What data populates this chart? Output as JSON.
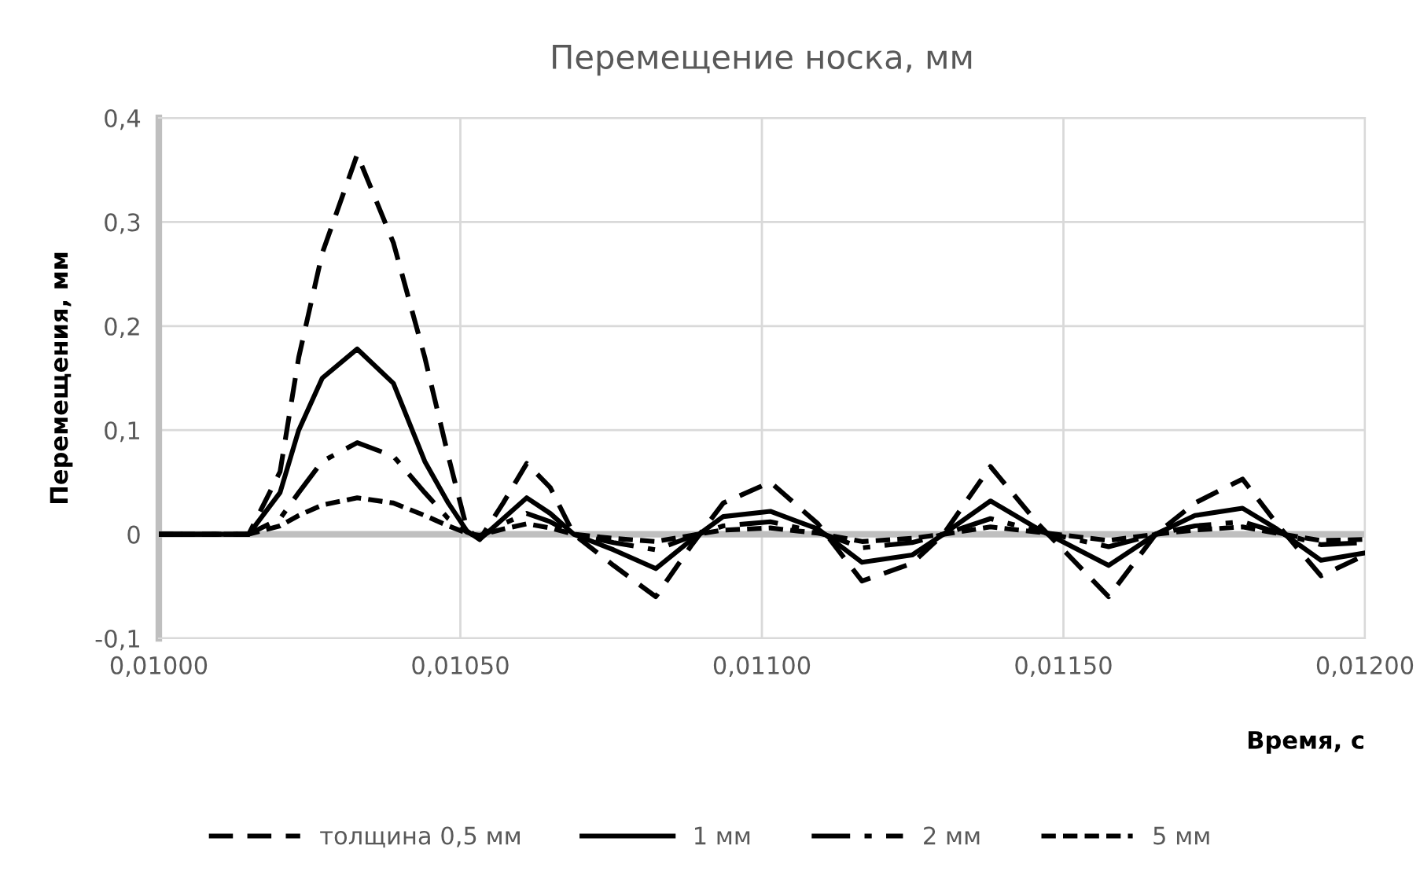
{
  "chart_data": {
    "type": "line",
    "title": "Перемещение носка, мм",
    "xlabel": "Время, с",
    "ylabel": "Перемещения, мм",
    "x": [
      0.01,
      0.010149,
      0.010201,
      0.010232,
      0.010271,
      0.010329,
      0.010389,
      0.010441,
      0.01048,
      0.010511,
      0.010532,
      0.010571,
      0.01061,
      0.010649,
      0.010688,
      0.010754,
      0.010824,
      0.010884,
      0.010936,
      0.011014,
      0.011093,
      0.011166,
      0.011249,
      0.011301,
      0.011379,
      0.011458,
      0.011575,
      0.011653,
      0.011718,
      0.011797,
      0.011854,
      0.011927,
      0.012
    ],
    "series": [
      {
        "name": "толщина 0,5 мм",
        "color": "#000000",
        "line_style": "dashed",
        "values": [
          0,
          0,
          0.06,
          0.17,
          0.27,
          0.365,
          0.28,
          0.17,
          0.075,
          0.005,
          -0.005,
          0.03,
          0.068,
          0.045,
          0,
          -0.03,
          -0.06,
          -0.01,
          0.03,
          0.05,
          0.01,
          -0.045,
          -0.028,
          0,
          0.065,
          0.01,
          -0.06,
          0,
          0.03,
          0.053,
          0.01,
          -0.04,
          -0.02
        ]
      },
      {
        "name": "1 мм",
        "color": "#000000",
        "line_style": "solid",
        "values": [
          0,
          0,
          0.04,
          0.1,
          0.15,
          0.178,
          0.145,
          0.07,
          0.03,
          0.003,
          -0.005,
          0.015,
          0.035,
          0.02,
          0,
          -0.015,
          -0.033,
          -0.005,
          0.017,
          0.022,
          0.005,
          -0.027,
          -0.02,
          0,
          0.032,
          0.005,
          -0.03,
          0,
          0.018,
          0.025,
          0.005,
          -0.025,
          -0.018
        ]
      },
      {
        "name": "2 мм",
        "color": "#000000",
        "line_style": "dashdot",
        "values": [
          0,
          0,
          0.015,
          0.04,
          0.07,
          0.088,
          0.075,
          0.04,
          0.015,
          0.002,
          -0.003,
          0.01,
          0.02,
          0.012,
          0,
          -0.008,
          -0.015,
          -0.002,
          0.008,
          0.012,
          0.002,
          -0.013,
          -0.008,
          0,
          0.015,
          0.003,
          -0.012,
          0,
          0.008,
          0.012,
          0.002,
          -0.01,
          -0.008
        ]
      },
      {
        "name": "5 мм",
        "color": "#000000",
        "line_style": "dotted",
        "values": [
          0,
          0,
          0.008,
          0.018,
          0.028,
          0.035,
          0.03,
          0.018,
          0.008,
          0.001,
          -0.001,
          0.005,
          0.01,
          0.006,
          0,
          -0.004,
          -0.007,
          -0.001,
          0.004,
          0.006,
          0.001,
          -0.007,
          -0.004,
          0,
          0.007,
          0.002,
          -0.006,
          0,
          0.004,
          0.007,
          0.001,
          -0.006,
          -0.005
        ]
      }
    ],
    "xlim": [
      0.01,
      0.012
    ],
    "xticks": [
      {
        "value": 0.01,
        "label": "0,01000"
      },
      {
        "value": 0.0105,
        "label": "0,01050"
      },
      {
        "value": 0.011,
        "label": "0,01100"
      },
      {
        "value": 0.0115,
        "label": "0,01150"
      },
      {
        "value": 0.012,
        "label": "0,01200"
      }
    ],
    "ylim": [
      -0.1,
      0.4
    ],
    "yticks": [
      {
        "value": -0.1,
        "label": "-0,1"
      },
      {
        "value": 0,
        "label": "0"
      },
      {
        "value": 0.1,
        "label": "0,1"
      },
      {
        "value": 0.2,
        "label": "0,2"
      },
      {
        "value": 0.3,
        "label": "0,3"
      },
      {
        "value": 0.4,
        "label": "0,4"
      }
    ],
    "grid": true,
    "legend": "bottom",
    "marker": "none"
  }
}
